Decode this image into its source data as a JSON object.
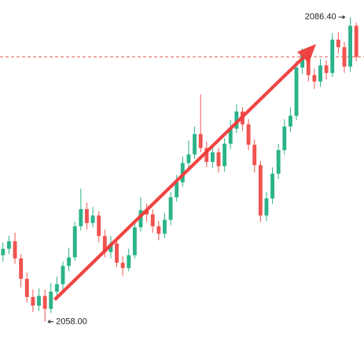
{
  "chart_data": {
    "type": "candlestick",
    "ylim": [
      2056.2,
      2088.0
    ],
    "up_color": "#2bb38a",
    "down_color": "#ef5350",
    "price_line": 2082.7,
    "price_line_color": "#e05a5a",
    "open": [
      2064.2,
      2064.8,
      2065.5,
      2063.9,
      2062.0,
      2060.3,
      2059.5,
      2060.4,
      2059.2,
      2060.8,
      2061.5,
      2063.2,
      2064.0,
      2066.9,
      2068.5,
      2067.2,
      2067.9,
      2066.0,
      2064.5,
      2065.3,
      2063.5,
      2063.0,
      2064.2,
      2066.8,
      2068.4,
      2068.0,
      2066.9,
      2066.2,
      2067.5,
      2069.6,
      2071.0,
      2072.8,
      2073.6,
      2075.5,
      2074.2,
      2072.9,
      2073.8,
      2072.5,
      2074.6,
      2076.0,
      2077.6,
      2076.4,
      2074.5,
      2072.6,
      2067.9,
      2069.5,
      2071.8,
      2074.0,
      2076.2,
      2077.2,
      2081.7,
      2082.9,
      2081.0,
      2080.4,
      2081.9,
      2081.2,
      2084.3,
      2083.6,
      2081.8,
      2085.6
    ],
    "high": [
      2065.4,
      2066.0,
      2066.3,
      2064.3,
      2062.6,
      2061.0,
      2061.1,
      2061.0,
      2061.6,
      2062.2,
      2063.6,
      2064.9,
      2067.3,
      2070.4,
      2069.1,
      2068.7,
      2068.3,
      2066.6,
      2066.0,
      2065.8,
      2064.1,
      2064.8,
      2067.2,
      2069.6,
      2069.0,
      2068.5,
      2067.4,
      2068.1,
      2070.1,
      2071.7,
      2073.4,
      2074.9,
      2076.2,
      2079.2,
      2074.8,
      2074.4,
      2074.2,
      2075.1,
      2076.8,
      2078.3,
      2078.0,
      2076.9,
      2075.0,
      2073.0,
      2070.1,
      2072.4,
      2074.6,
      2076.9,
      2078.0,
      2082.3,
      2083.5,
      2083.4,
      2081.6,
      2082.5,
      2082.4,
      2084.9,
      2085.0,
      2084.1,
      2086.4,
      2085.9
    ],
    "low": [
      2063.6,
      2064.3,
      2063.4,
      2061.2,
      2059.8,
      2058.9,
      2059.0,
      2058.0,
      2058.8,
      2060.1,
      2061.0,
      2062.7,
      2063.7,
      2066.5,
      2066.6,
      2066.8,
      2065.4,
      2064.0,
      2063.9,
      2063.1,
      2062.3,
      2062.7,
      2063.9,
      2066.4,
      2067.3,
      2066.3,
      2065.6,
      2065.8,
      2067.0,
      2069.2,
      2070.6,
      2072.3,
      2073.2,
      2073.8,
      2072.4,
      2072.3,
      2071.9,
      2072.0,
      2074.1,
      2075.6,
      2075.8,
      2074.0,
      2071.9,
      2067.3,
      2067.4,
      2069.0,
      2071.3,
      2073.6,
      2075.7,
      2076.8,
      2081.1,
      2080.4,
      2079.7,
      2079.9,
      2080.6,
      2080.8,
      2083.0,
      2081.2,
      2081.3,
      2082.3
    ],
    "close": [
      2064.8,
      2065.5,
      2063.9,
      2062.0,
      2060.3,
      2059.5,
      2060.4,
      2059.2,
      2060.8,
      2061.5,
      2063.2,
      2064.0,
      2066.9,
      2068.5,
      2067.2,
      2067.9,
      2066.0,
      2064.5,
      2065.3,
      2063.5,
      2063.0,
      2064.2,
      2066.8,
      2068.4,
      2068.0,
      2066.9,
      2066.2,
      2067.5,
      2069.6,
      2071.0,
      2072.8,
      2073.6,
      2075.5,
      2074.2,
      2072.9,
      2073.8,
      2072.5,
      2074.6,
      2076.0,
      2077.6,
      2076.4,
      2074.5,
      2072.6,
      2067.9,
      2069.5,
      2071.8,
      2074.0,
      2076.2,
      2077.2,
      2081.7,
      2082.9,
      2081.0,
      2080.4,
      2081.9,
      2081.2,
      2084.3,
      2083.6,
      2081.8,
      2085.6,
      2082.7
    ],
    "annotations": [
      {
        "value": 2086.4,
        "label": "2086.40",
        "index": 58,
        "side": "left"
      },
      {
        "value": 2058,
        "label": "2058.00",
        "index": 7,
        "side": "right"
      }
    ]
  }
}
